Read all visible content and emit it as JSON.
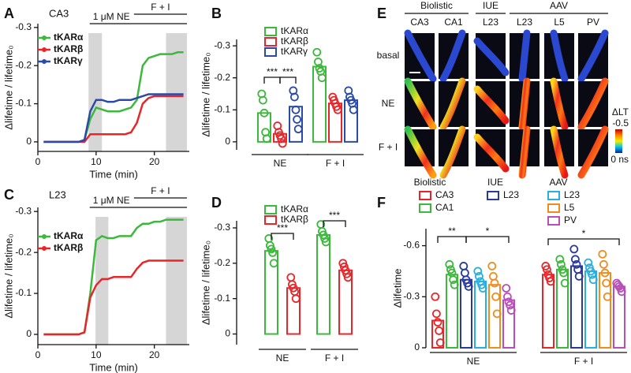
{
  "chart_data": [
    {
      "type": "line",
      "panel": "A",
      "title": "CA3",
      "x_label": "Time (min)",
      "y_label": "Δlifetime / lifetime₀",
      "x": [
        1,
        2,
        3,
        4,
        5,
        6,
        7,
        8,
        9,
        10,
        11,
        12,
        13,
        14,
        15,
        16,
        17,
        18,
        19,
        20,
        21,
        22,
        23,
        24,
        25
      ],
      "series": [
        {
          "name": "tKARα",
          "color": "#3cb83c",
          "values": [
            0,
            0,
            0,
            0,
            0,
            0,
            0,
            -0.005,
            -0.06,
            -0.09,
            -0.085,
            -0.08,
            -0.08,
            -0.08,
            -0.085,
            -0.09,
            -0.11,
            -0.2,
            -0.22,
            -0.225,
            -0.23,
            -0.23,
            -0.23,
            -0.235,
            -0.235
          ]
        },
        {
          "name": "tKARβ",
          "color": "#e8262a",
          "values": [
            0,
            0,
            0,
            0,
            0,
            0,
            0,
            0,
            -0.02,
            -0.02,
            -0.02,
            -0.02,
            -0.02,
            -0.02,
            -0.02,
            -0.025,
            -0.05,
            -0.1,
            -0.115,
            -0.12,
            -0.12,
            -0.12,
            -0.12,
            -0.12,
            -0.12
          ]
        },
        {
          "name": "tKARγ",
          "color": "#2a4aa8",
          "values": [
            0,
            0,
            0,
            0,
            0,
            0,
            0,
            -0.005,
            -0.08,
            -0.11,
            -0.11,
            -0.105,
            -0.105,
            -0.11,
            -0.11,
            -0.11,
            -0.115,
            -0.12,
            -0.125,
            -0.125,
            -0.125,
            -0.125,
            -0.125,
            -0.125,
            -0.125
          ]
        }
      ],
      "xlim": [
        0,
        26
      ],
      "xticks": [
        0,
        10,
        20
      ],
      "ylim": [
        0.025,
        -0.31
      ],
      "yticks": [
        0,
        -0.1,
        -0.2,
        -0.3
      ],
      "shaded": [
        [
          8.7,
          11
        ],
        [
          22,
          25.6
        ]
      ],
      "annotations": [
        {
          "text": "1 μM NE",
          "span": [
            8.9,
            25.6
          ]
        },
        {
          "text": "F + I",
          "span": [
            16.5,
            25.6
          ]
        }
      ],
      "legend": "upper left"
    },
    {
      "type": "bar",
      "panel": "B",
      "y_label": "Δlifetime / lifetime₀",
      "categories": [
        "NE",
        "F + I"
      ],
      "series": [
        {
          "name": "tKARα",
          "color": "#3cb83c",
          "values": [
            -0.09,
            -0.235
          ],
          "points": [
            [
              -0.15,
              -0.13,
              -0.09,
              -0.03,
              -0.01
            ],
            [
              -0.28,
              -0.25,
              -0.23,
              -0.22,
              -0.2
            ]
          ]
        },
        {
          "name": "tKARβ",
          "color": "#e8262a",
          "values": [
            -0.025,
            -0.12
          ],
          "points": [
            [
              -0.05,
              -0.03,
              -0.02,
              -0.01,
              0.005
            ],
            [
              -0.14,
              -0.13,
              -0.12,
              -0.11,
              -0.1
            ]
          ]
        },
        {
          "name": "tKARγ",
          "color": "#2a4aa8",
          "values": [
            -0.11,
            -0.13
          ],
          "points": [
            [
              -0.16,
              -0.14,
              -0.1,
              -0.07,
              -0.04
            ],
            [
              -0.16,
              -0.14,
              -0.13,
              -0.12,
              -0.1
            ]
          ]
        }
      ],
      "ylim": [
        0.025,
        -0.32
      ],
      "yticks": [
        0,
        -0.1,
        -0.2,
        -0.3
      ],
      "significance": [
        "***",
        "***"
      ],
      "legend": "upper left"
    },
    {
      "type": "line",
      "panel": "C",
      "title": "L23",
      "x_label": "Time (min)",
      "y_label": "Δlifetime / lifetime₀",
      "x": [
        1,
        2,
        3,
        4,
        5,
        6,
        7,
        8,
        9,
        10,
        11,
        12,
        13,
        14,
        15,
        16,
        17,
        18,
        19,
        20,
        21,
        22,
        23,
        24,
        25
      ],
      "series": [
        {
          "name": "tKARα",
          "color": "#3cb83c",
          "values": [
            0,
            0,
            0,
            0,
            0,
            0,
            0,
            -0.005,
            -0.1,
            -0.23,
            -0.24,
            -0.235,
            -0.235,
            -0.24,
            -0.24,
            -0.24,
            -0.26,
            -0.27,
            -0.27,
            -0.275,
            -0.275,
            -0.28,
            -0.28,
            -0.28,
            -0.28
          ]
        },
        {
          "name": "tKARβ",
          "color": "#e8262a",
          "values": [
            0,
            0,
            0,
            0,
            0,
            0,
            0,
            -0.005,
            -0.09,
            -0.12,
            -0.135,
            -0.135,
            -0.14,
            -0.14,
            -0.14,
            -0.14,
            -0.16,
            -0.175,
            -0.18,
            -0.18,
            -0.18,
            -0.18,
            -0.18,
            -0.18,
            -0.18
          ]
        }
      ],
      "xlim": [
        0,
        26
      ],
      "xticks": [
        0,
        10,
        20
      ],
      "ylim": [
        0.025,
        -0.31
      ],
      "yticks": [
        0,
        -0.1,
        -0.2,
        -0.3
      ],
      "shaded": [
        [
          9.9,
          12.1
        ],
        [
          22,
          25.6
        ]
      ],
      "annotations": [
        {
          "text": "1 μM NE",
          "span": [
            8.9,
            25.6
          ]
        },
        {
          "text": "F + I",
          "span": [
            16.5,
            25.6
          ]
        }
      ],
      "legend": "upper left"
    },
    {
      "type": "bar",
      "panel": "D",
      "y_label": "Δlifetime / lifetime₀",
      "categories": [
        "NE",
        "F + I"
      ],
      "series": [
        {
          "name": "tKARα",
          "color": "#3cb83c",
          "values": [
            -0.235,
            -0.28
          ],
          "points": [
            [
              -0.27,
              -0.25,
              -0.24,
              -0.23,
              -0.2
            ],
            [
              -0.31,
              -0.29,
              -0.28,
              -0.27,
              -0.26
            ]
          ]
        },
        {
          "name": "tKARβ",
          "color": "#e8262a",
          "values": [
            -0.13,
            -0.18
          ],
          "points": [
            [
              -0.16,
              -0.14,
              -0.13,
              -0.12,
              -0.1
            ],
            [
              -0.2,
              -0.19,
              -0.18,
              -0.17,
              -0.16
            ]
          ]
        }
      ],
      "ylim": [
        0.03,
        -0.32
      ],
      "yticks": [
        0,
        -0.1,
        -0.2,
        -0.3
      ],
      "significance": [
        "***",
        "***"
      ],
      "legend": "upper left"
    },
    {
      "type": "bar",
      "panel": "F",
      "y_label": "Δlifetime",
      "categories": [
        "NE",
        "F + I"
      ],
      "legend_groups": [
        "Biolistic",
        "IUE",
        "AAV"
      ],
      "series": [
        {
          "name": "CA3",
          "color": "#e8262a",
          "values": [
            -0.16,
            -0.43
          ],
          "points": [
            [
              -0.3,
              -0.2,
              -0.15,
              -0.1,
              -0.03
            ],
            [
              -0.48,
              -0.46,
              -0.43,
              -0.41,
              -0.39
            ]
          ]
        },
        {
          "name": "CA1",
          "color": "#3cb83c",
          "values": [
            -0.43,
            -0.46
          ],
          "points": [
            [
              -0.49,
              -0.46,
              -0.44,
              -0.4,
              -0.37
            ],
            [
              -0.52,
              -0.49,
              -0.46,
              -0.44,
              -0.38
            ]
          ]
        },
        {
          "name": "L23",
          "color": "#2a3a9a",
          "values": [
            -0.4,
            -0.48
          ],
          "points": [
            [
              -0.48,
              -0.44,
              -0.4,
              -0.38,
              -0.36
            ],
            [
              -0.58,
              -0.52,
              -0.49,
              -0.46,
              -0.42
            ]
          ]
        },
        {
          "name": "L23",
          "color": "#29aee0",
          "values": [
            -0.39,
            -0.45
          ],
          "points": [
            [
              -0.45,
              -0.42,
              -0.39,
              -0.37,
              -0.35
            ],
            [
              -0.5,
              -0.47,
              -0.45,
              -0.43,
              -0.4
            ]
          ]
        },
        {
          "name": "L5",
          "color": "#f08c1e",
          "values": [
            -0.37,
            -0.44
          ],
          "points": [
            [
              -0.48,
              -0.42,
              -0.38,
              -0.3,
              -0.2
            ],
            [
              -0.55,
              -0.49,
              -0.44,
              -0.38,
              -0.3
            ]
          ]
        },
        {
          "name": "PV",
          "color": "#b84fb8",
          "values": [
            -0.28,
            -0.36
          ],
          "points": [
            [
              -0.35,
              -0.3,
              -0.27,
              -0.25,
              -0.22
            ],
            [
              -0.38,
              -0.37,
              -0.36,
              -0.35,
              -0.33
            ]
          ]
        }
      ],
      "ylim": [
        0,
        -0.7
      ],
      "yticks": [
        0,
        -0.3,
        -0.6
      ],
      "significance": [
        "**",
        "*",
        "*"
      ],
      "legend": "upper left"
    }
  ],
  "image_panel": {
    "panel": "E",
    "groups": [
      "Biolistic",
      "IUE",
      "AAV"
    ],
    "columns": [
      "CA3",
      "CA1",
      "L23",
      "L23",
      "L5",
      "PV"
    ],
    "rows": [
      "basal",
      "NE",
      "F + I"
    ],
    "colorbar": {
      "label": "ΔLT",
      "top": "-0.5",
      "bottom": "0 ns"
    }
  }
}
